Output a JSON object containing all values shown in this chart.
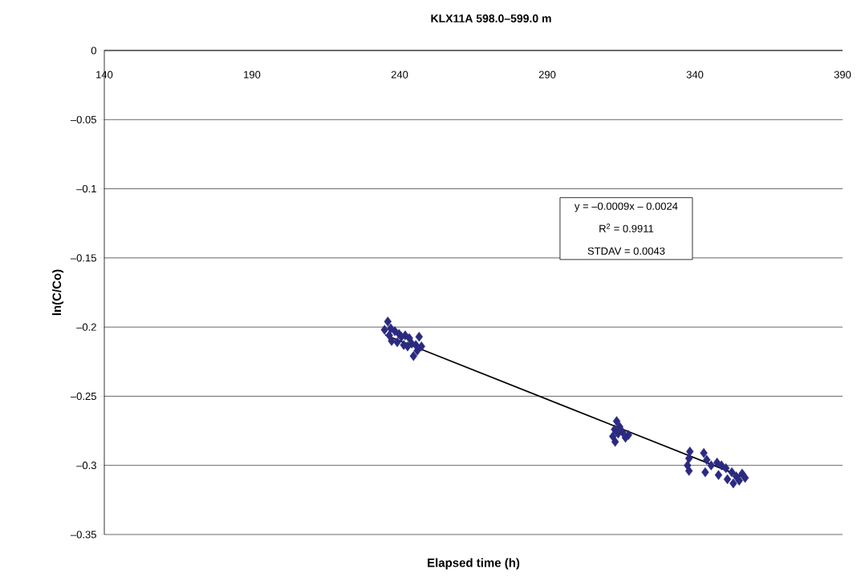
{
  "chart_data": {
    "type": "scatter",
    "title": "KLX11A 598.0–599.0 m",
    "xlabel": "Elapsed time (h)",
    "ylabel": "ln(C/Co)",
    "xlim": [
      140,
      390
    ],
    "xticks": [
      140,
      190,
      240,
      290,
      340,
      390
    ],
    "ylim": [
      -0.35,
      0
    ],
    "yticks": [
      {
        "value": -0.35,
        "label": "–0.35"
      },
      {
        "value": -0.3,
        "label": "–0.3"
      },
      {
        "value": -0.25,
        "label": "–0.25"
      },
      {
        "value": -0.2,
        "label": "–0.2"
      },
      {
        "value": -0.15,
        "label": "–0.15"
      },
      {
        "value": -0.1,
        "label": "–0.1"
      },
      {
        "value": -0.05,
        "label": "–0.05"
      },
      {
        "value": 0,
        "label": "0"
      }
    ],
    "grid": "y",
    "annotations": [
      "y = –0.0009x – 0.0024",
      "R$^{2}$ = 0.9911",
      "STDAV = 0.0043"
    ],
    "series": [
      {
        "marker": "diamond",
        "color": "#2b2a80",
        "x": [
          236.0,
          234.9,
          237.0,
          238.4,
          239.8,
          240.6,
          241.9,
          243.3,
          244.1,
          242.7,
          241.4,
          239.2,
          237.3,
          245.5,
          246.6,
          244.7,
          246.0,
          247.4,
          236.5,
          313.5,
          312.8,
          314.5,
          315.5,
          312.2,
          313.0,
          316.5,
          317.5,
          314.0,
          338.0,
          337.5,
          338.3,
          338.0,
          343.0,
          344.0,
          345.5,
          343.5,
          347.5,
          349.0,
          350.5,
          348.0,
          351.0,
          352.5,
          354.0,
          355.0,
          356.0,
          353.0,
          357.0
        ],
        "values": [
          -0.196,
          -0.202,
          -0.201,
          -0.203,
          -0.205,
          -0.207,
          -0.206,
          -0.208,
          -0.212,
          -0.214,
          -0.213,
          -0.211,
          -0.21,
          -0.213,
          -0.207,
          -0.221,
          -0.217,
          -0.214,
          -0.206,
          -0.268,
          -0.274,
          -0.272,
          -0.276,
          -0.279,
          -0.283,
          -0.28,
          -0.278,
          -0.277,
          -0.295,
          -0.3,
          -0.29,
          -0.304,
          -0.291,
          -0.296,
          -0.3,
          -0.305,
          -0.298,
          -0.3,
          -0.302,
          -0.307,
          -0.31,
          -0.305,
          -0.308,
          -0.311,
          -0.306,
          -0.313,
          -0.309
        ]
      },
      {
        "type": "line",
        "marker": "none",
        "color": "#000000",
        "x": [
          235.1,
          357.4
        ],
        "values": [
          -0.2057,
          -0.3094
        ]
      }
    ]
  }
}
